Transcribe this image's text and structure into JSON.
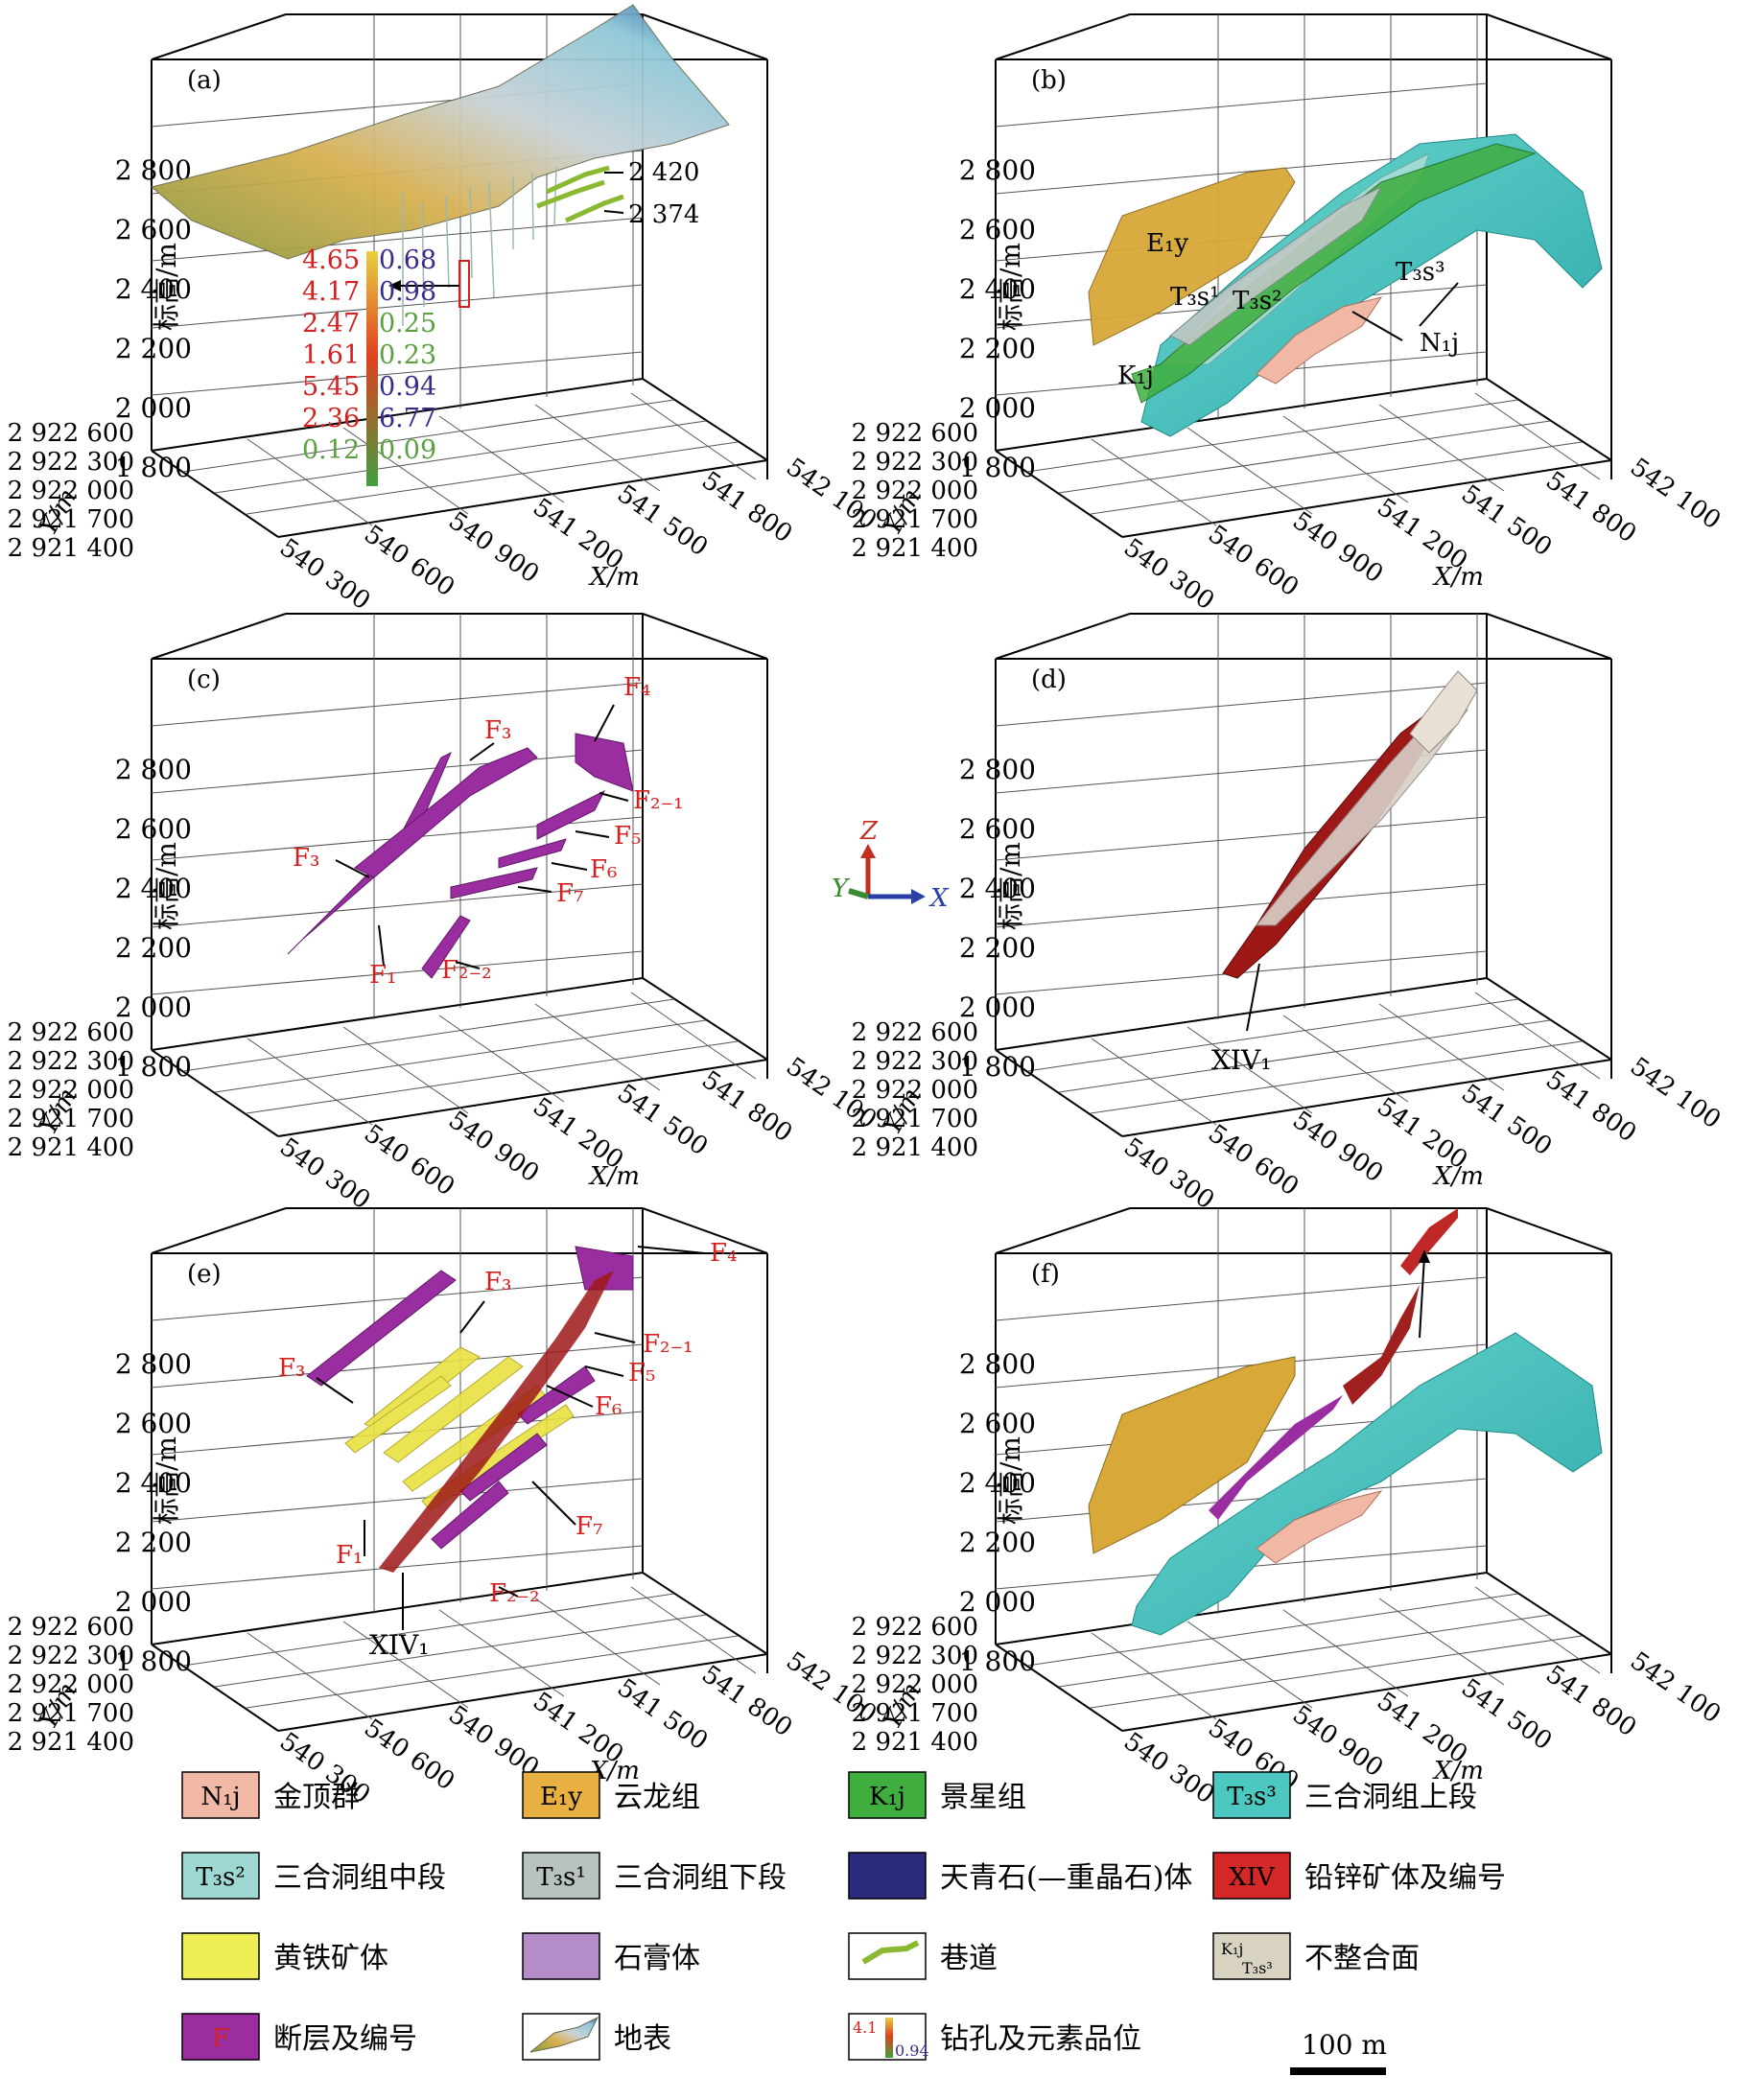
{
  "axes": {
    "z_label": "标高/m",
    "x_label": "X/m",
    "y_label": "Y/m",
    "z_ticks": [
      "2 800",
      "2 600",
      "2 400",
      "2 200",
      "2 000",
      "1 800"
    ],
    "x_ticks": [
      "540 300",
      "540 600",
      "540 900",
      "541 200",
      "541 500",
      "541 800",
      "542 100"
    ],
    "y_ticks": [
      "2 922 600",
      "2 922 300",
      "2 922 000",
      "2 921 700",
      "2 921 400"
    ]
  },
  "panels": [
    {
      "id": "a",
      "label": "(a)"
    },
    {
      "id": "b",
      "label": "(b)"
    },
    {
      "id": "c",
      "label": "(c)"
    },
    {
      "id": "d",
      "label": "(d)"
    },
    {
      "id": "e",
      "label": "(e)"
    },
    {
      "id": "f",
      "label": "(f)"
    }
  ],
  "panel_a": {
    "tunnel_labels": [
      "2 420",
      "2 374"
    ],
    "grades_left": [
      "4.65",
      "4.17",
      "2.47",
      "1.61",
      "5.45",
      "2.36",
      "0.12"
    ],
    "grades_right": [
      "0.68",
      "0.98",
      "0.25",
      "0.23",
      "0.94",
      "6.77",
      "0.09"
    ]
  },
  "panel_b": {
    "labels": [
      "E₁y",
      "T₃s¹",
      "T₃s²",
      "T₃s³",
      "N₁j",
      "K₁j"
    ]
  },
  "panel_c": {
    "faults": [
      "F₃",
      "F₄",
      "F₂₋₁",
      "F₅",
      "F₆",
      "F₃",
      "F₇",
      "F₁",
      "F₂₋₂"
    ]
  },
  "panel_d": {
    "ore_label": "XIV₁"
  },
  "panel_e": {
    "faults": [
      "F₃",
      "F₄",
      "F₂₋₁",
      "F₃",
      "F₅",
      "F₆",
      "F₁",
      "F₇",
      "F₂₋₂"
    ],
    "ore_label": "XIV₁"
  },
  "orientation": {
    "z": "Z",
    "y": "Y",
    "x": "X"
  },
  "legend": [
    {
      "symbol": "N₁j",
      "text": "金顶群",
      "color": "#f2b8a6"
    },
    {
      "symbol": "E₁y",
      "text": "云龙组",
      "color": "#e8b040"
    },
    {
      "symbol": "K₁j",
      "text": "景星组",
      "color": "#3fae3f"
    },
    {
      "symbol": "T₃s³",
      "text": "三合洞组上段",
      "color": "#4cc8c0"
    },
    {
      "symbol": "T₃s²",
      "text": "三合洞组中段",
      "color": "#9ed8d2"
    },
    {
      "symbol": "T₃s¹",
      "text": "三合洞组下段",
      "color": "#b8c2c0"
    },
    {
      "symbol": "",
      "text": "天青石(—重晶石)体",
      "color": "#2b2a7c"
    },
    {
      "symbol": "XIV",
      "text": "铅锌矿体及编号",
      "color": "#d42828"
    },
    {
      "symbol": "",
      "text": "黄铁矿体",
      "color": "#eeee55"
    },
    {
      "symbol": "",
      "text": "石膏体",
      "color": "#b48cc8"
    },
    {
      "symbol": "",
      "text": "巷道",
      "color": "#ffffff"
    },
    {
      "symbol": "",
      "text": "不整合面",
      "color": "#d8d2c0"
    },
    {
      "symbol": "F",
      "text": "断层及编号",
      "color": "#9a2ea0"
    },
    {
      "symbol": "",
      "text": "地表",
      "color": "#ffffff"
    },
    {
      "symbol": "",
      "text": "钻孔及元素品位",
      "color": "#ffffff"
    },
    {
      "symbol": "",
      "text": "",
      "color": "#ffffff"
    }
  ],
  "drill_icon_labels": [
    "4.1",
    "0.94"
  ],
  "legend_unconformity": [
    "K₁j",
    "T₃s³"
  ],
  "scale_bar": "100 m"
}
